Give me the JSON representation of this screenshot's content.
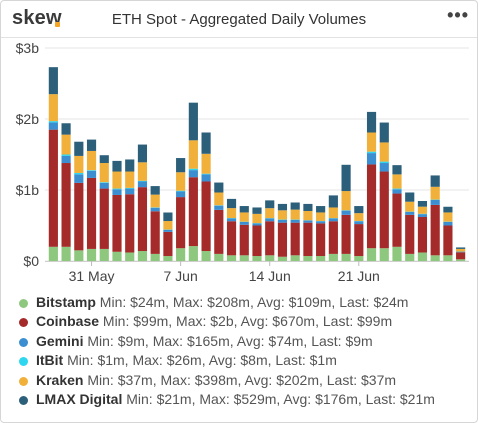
{
  "header": {
    "logo": "skew",
    "title": "ETH Spot - Aggregated Daily Volumes",
    "menu_icon": "more-horizontal-icon"
  },
  "colors": {
    "brand_dot": "#f5a623",
    "Bitstamp": "#8ec87e",
    "Coinbase": "#a52a2a",
    "Gemini": "#3b8fd1",
    "ItBit": "#2fd6ef",
    "Kraken": "#f0b03a",
    "LMAX Digital": "#2c5f7a"
  },
  "legend": [
    {
      "name": "Bitstamp",
      "stats": "Min: $24m, Max: $208m, Avg: $109m, Last: $24m"
    },
    {
      "name": "Coinbase",
      "stats": "Min: $99m, Max: $2b, Avg: $670m, Last: $99m"
    },
    {
      "name": "Gemini",
      "stats": "Min: $9m, Max: $165m, Avg: $74m, Last: $9m"
    },
    {
      "name": "ItBit",
      "stats": "Min: $1m, Max: $26m, Avg: $8m, Last: $1m"
    },
    {
      "name": "Kraken",
      "stats": "Min: $37m, Max: $398m, Avg: $202m, Last: $37m"
    },
    {
      "name": "LMAX Digital",
      "stats": "Min: $21m, Max: $529m, Avg: $176m, Last: $21m"
    }
  ],
  "chart_data": {
    "type": "bar",
    "stacked": true,
    "title": "ETH Spot - Aggregated Daily Volumes",
    "ylim": [
      0,
      3
    ],
    "y_unit": "billion USD",
    "y_ticks": [
      "$0",
      "$1b",
      "$2b",
      "$3b"
    ],
    "y_tick_values": [
      0,
      1,
      2,
      3
    ],
    "x_ticks": [
      "31 May",
      "7 Jun",
      "14 Jun",
      "21 Jun"
    ],
    "x_tick_category_index": [
      3,
      10,
      17,
      24
    ],
    "grid": true,
    "legend_position": "bottom",
    "categories": [
      "27 May",
      "28 May",
      "29 May",
      "30 May",
      "31 May",
      "1 Jun",
      "2 Jun",
      "3 Jun",
      "4 Jun",
      "5 Jun",
      "6 Jun",
      "7 Jun",
      "8 Jun",
      "9 Jun",
      "10 Jun",
      "11 Jun",
      "12 Jun",
      "13 Jun",
      "14 Jun",
      "15 Jun",
      "16 Jun",
      "17 Jun",
      "18 Jun",
      "19 Jun",
      "20 Jun",
      "21 Jun",
      "22 Jun",
      "23 Jun",
      "24 Jun",
      "25 Jun",
      "26 Jun",
      "27 Jun",
      "28 Jun"
    ],
    "series": [
      {
        "name": "Bitstamp",
        "values": [
          0.2,
          0.2,
          0.15,
          0.17,
          0.17,
          0.13,
          0.12,
          0.14,
          0.1,
          0.07,
          0.18,
          0.21,
          0.14,
          0.1,
          0.08,
          0.08,
          0.07,
          0.08,
          0.06,
          0.08,
          0.07,
          0.07,
          0.1,
          0.1,
          0.07,
          0.18,
          0.18,
          0.2,
          0.1,
          0.12,
          0.08,
          0.08,
          0.024
        ]
      },
      {
        "name": "Coinbase",
        "values": [
          1.65,
          1.18,
          0.95,
          1.0,
          0.85,
          0.8,
          0.82,
          0.9,
          0.6,
          0.34,
          0.72,
          0.97,
          0.98,
          0.62,
          0.48,
          0.43,
          0.43,
          0.48,
          0.48,
          0.46,
          0.47,
          0.46,
          0.46,
          0.55,
          0.45,
          1.18,
          1.08,
          0.75,
          0.55,
          0.5,
          0.71,
          0.42,
          0.099
        ]
      },
      {
        "name": "Gemini",
        "values": [
          0.1,
          0.1,
          0.12,
          0.1,
          0.08,
          0.08,
          0.08,
          0.08,
          0.05,
          0.03,
          0.08,
          0.1,
          0.1,
          0.06,
          0.04,
          0.04,
          0.03,
          0.04,
          0.04,
          0.04,
          0.03,
          0.03,
          0.04,
          0.06,
          0.04,
          0.16,
          0.12,
          0.06,
          0.04,
          0.04,
          0.07,
          0.05,
          0.009
        ]
      },
      {
        "name": "ItBit",
        "values": [
          0.02,
          0.02,
          0.02,
          0.01,
          0.01,
          0.01,
          0.01,
          0.01,
          0.005,
          0.003,
          0.01,
          0.02,
          0.01,
          0.005,
          0.005,
          0.004,
          0.004,
          0.004,
          0.004,
          0.004,
          0.004,
          0.004,
          0.004,
          0.005,
          0.004,
          0.02,
          0.02,
          0.01,
          0.005,
          0.005,
          0.005,
          0.004,
          0.001
        ]
      },
      {
        "name": "Kraken",
        "values": [
          0.38,
          0.28,
          0.24,
          0.27,
          0.27,
          0.24,
          0.23,
          0.26,
          0.18,
          0.12,
          0.26,
          0.4,
          0.28,
          0.18,
          0.14,
          0.13,
          0.13,
          0.14,
          0.13,
          0.14,
          0.13,
          0.12,
          0.15,
          0.27,
          0.11,
          0.27,
          0.27,
          0.2,
          0.14,
          0.1,
          0.18,
          0.13,
          0.037
        ]
      },
      {
        "name": "LMAX Digital",
        "values": [
          0.38,
          0.16,
          0.2,
          0.16,
          0.11,
          0.15,
          0.17,
          0.25,
          0.12,
          0.12,
          0.2,
          0.53,
          0.3,
          0.14,
          0.13,
          0.09,
          0.09,
          0.11,
          0.09,
          0.1,
          0.1,
          0.09,
          0.17,
          0.37,
          0.1,
          0.29,
          0.28,
          0.13,
          0.13,
          0.08,
          0.16,
          0.08,
          0.021
        ]
      }
    ]
  }
}
